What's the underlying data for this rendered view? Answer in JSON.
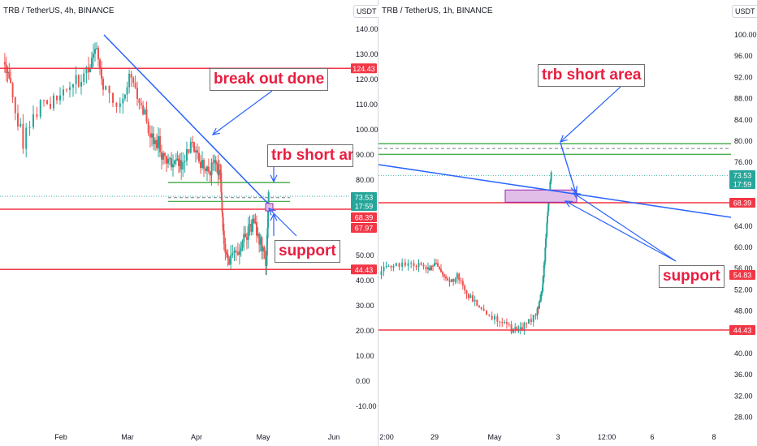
{
  "colors": {
    "up": "#26a69a",
    "down": "#ef5350",
    "red_line": "#f23645",
    "green_line": "#4caf50",
    "blue_line": "#2962ff",
    "note_text": "#e91e40",
    "box_fill": "#e1bee7",
    "box_border": "#9c27b0",
    "price_badge": "#26a69a",
    "level_badge": "#f23645"
  },
  "left_chart": {
    "title": "TRB / TetherUS, 4h, BINANCE",
    "currency": "USDT",
    "y_ticks": [
      "140.00",
      "130.00",
      "120.00",
      "110.00",
      "100.00",
      "90.00",
      "80.00",
      "70.00",
      "60.00",
      "50.00",
      "40.00",
      "30.00",
      "20.00",
      "10.00",
      "0.00",
      "-10.00"
    ],
    "x_ticks": [
      "Feb",
      "Mar",
      "Apr",
      "May",
      "Jun"
    ],
    "badges": [
      {
        "text": "124.43",
        "kind": "level"
      },
      {
        "text": "73.53",
        "kind": "price"
      },
      {
        "text": "17:59",
        "kind": "price"
      },
      {
        "text": "68.39",
        "kind": "level"
      },
      {
        "text": "67.97",
        "kind": "level"
      },
      {
        "text": "44.43",
        "kind": "level"
      }
    ],
    "annotations": [
      "break out done",
      "trb short area",
      "support"
    ]
  },
  "right_chart": {
    "title": "TRB / TetherUS, 1h, BINANCE",
    "currency": "USDT",
    "y_ticks": [
      "100.00",
      "96.00",
      "92.00",
      "88.00",
      "84.00",
      "80.00",
      "76.00",
      "72.00",
      "68.00",
      "64.00",
      "60.00",
      "56.00",
      "52.00",
      "48.00",
      "44.00",
      "40.00",
      "36.00",
      "32.00",
      "28.00"
    ],
    "x_ticks": [
      "2:00",
      "29",
      "May",
      "3",
      "12:00",
      "6",
      "8"
    ],
    "badges": [
      {
        "text": "73.53",
        "kind": "price"
      },
      {
        "text": "17:59",
        "kind": "price"
      },
      {
        "text": "68.39",
        "kind": "level"
      },
      {
        "text": "54.83",
        "kind": "level"
      },
      {
        "text": "44.43",
        "kind": "level"
      }
    ],
    "annotations": [
      "trb short area",
      "support"
    ]
  },
  "chart_data": [
    {
      "type": "candlestick",
      "title": "TRB / TetherUS, 4h, BINANCE",
      "ylabel": "USDT",
      "ylim": [
        -14,
        151
      ],
      "x_ticks": [
        "Feb",
        "Mar",
        "Apr",
        "May",
        "Jun"
      ],
      "last_price": 73.53,
      "countdown": "17:59",
      "horizontal_levels": [
        124.43,
        68.39,
        44.43
      ],
      "short_zone": [
        70,
        79
      ],
      "price_path": [
        {
          "x": "Jan 20",
          "y": 130
        },
        {
          "x": "Jan 24",
          "y": 118
        },
        {
          "x": "Jan 28",
          "y": 95
        },
        {
          "x": "Feb 02",
          "y": 110
        },
        {
          "x": "Feb 08",
          "y": 112
        },
        {
          "x": "Feb 14",
          "y": 118
        },
        {
          "x": "Feb 19",
          "y": 122
        },
        {
          "x": "Feb 22",
          "y": 135
        },
        {
          "x": "Feb 25",
          "y": 118
        },
        {
          "x": "Mar 01",
          "y": 110
        },
        {
          "x": "Mar 04",
          "y": 122
        },
        {
          "x": "Mar 08",
          "y": 110
        },
        {
          "x": "Mar 12",
          "y": 98
        },
        {
          "x": "Mar 16",
          "y": 95
        },
        {
          "x": "Mar 20",
          "y": 85
        },
        {
          "x": "Mar 24",
          "y": 90
        },
        {
          "x": "Mar 28",
          "y": 85
        },
        {
          "x": "Apr 01",
          "y": 96
        },
        {
          "x": "Apr 05",
          "y": 88
        },
        {
          "x": "Apr 08",
          "y": 84
        },
        {
          "x": "Apr 11",
          "y": 86
        },
        {
          "x": "Apr 13",
          "y": 80
        },
        {
          "x": "Apr 14",
          "y": 58
        },
        {
          "x": "Apr 16",
          "y": 47
        },
        {
          "x": "Apr 19",
          "y": 52
        },
        {
          "x": "Apr 22",
          "y": 58
        },
        {
          "x": "Apr 25",
          "y": 63
        },
        {
          "x": "Apr 28",
          "y": 57
        },
        {
          "x": "May 01",
          "y": 47
        },
        {
          "x": "May 02",
          "y": 73.5
        }
      ]
    },
    {
      "type": "candlestick",
      "title": "TRB / TetherUS, 1h, BINANCE",
      "ylabel": "USDT",
      "ylim": [
        26.5,
        102
      ],
      "x_ticks": [
        "2:00",
        "29",
        "May",
        "3",
        "12:00",
        "6",
        "8"
      ],
      "last_price": 73.53,
      "countdown": "17:59",
      "horizontal_levels": [
        79.5,
        77.5,
        68.39,
        54.83,
        44.43
      ],
      "short_zone": [
        68.5,
        70.8
      ],
      "price_path": [
        {
          "x": "Apr 27 02:00",
          "y": 55.5
        },
        {
          "x": "Apr 27 12:00",
          "y": 56.5
        },
        {
          "x": "Apr 28 00:00",
          "y": 57.5
        },
        {
          "x": "Apr 28 12:00",
          "y": 55.5
        },
        {
          "x": "Apr 29 00:00",
          "y": 57
        },
        {
          "x": "Apr 29 12:00",
          "y": 53.5
        },
        {
          "x": "Apr 30 00:00",
          "y": 54.5
        },
        {
          "x": "Apr 30 12:00",
          "y": 51
        },
        {
          "x": "May 01 00:00",
          "y": 48
        },
        {
          "x": "May 01 12:00",
          "y": 46.5
        },
        {
          "x": "May 02 00:00",
          "y": 44.5
        },
        {
          "x": "May 02 06:00",
          "y": 45
        },
        {
          "x": "May 02 12:00",
          "y": 47
        },
        {
          "x": "May 02 18:00",
          "y": 52
        },
        {
          "x": "May 02 22:00",
          "y": 58
        },
        {
          "x": "May 03 00:00",
          "y": 67
        },
        {
          "x": "May 03 03:00",
          "y": 74
        }
      ]
    }
  ]
}
